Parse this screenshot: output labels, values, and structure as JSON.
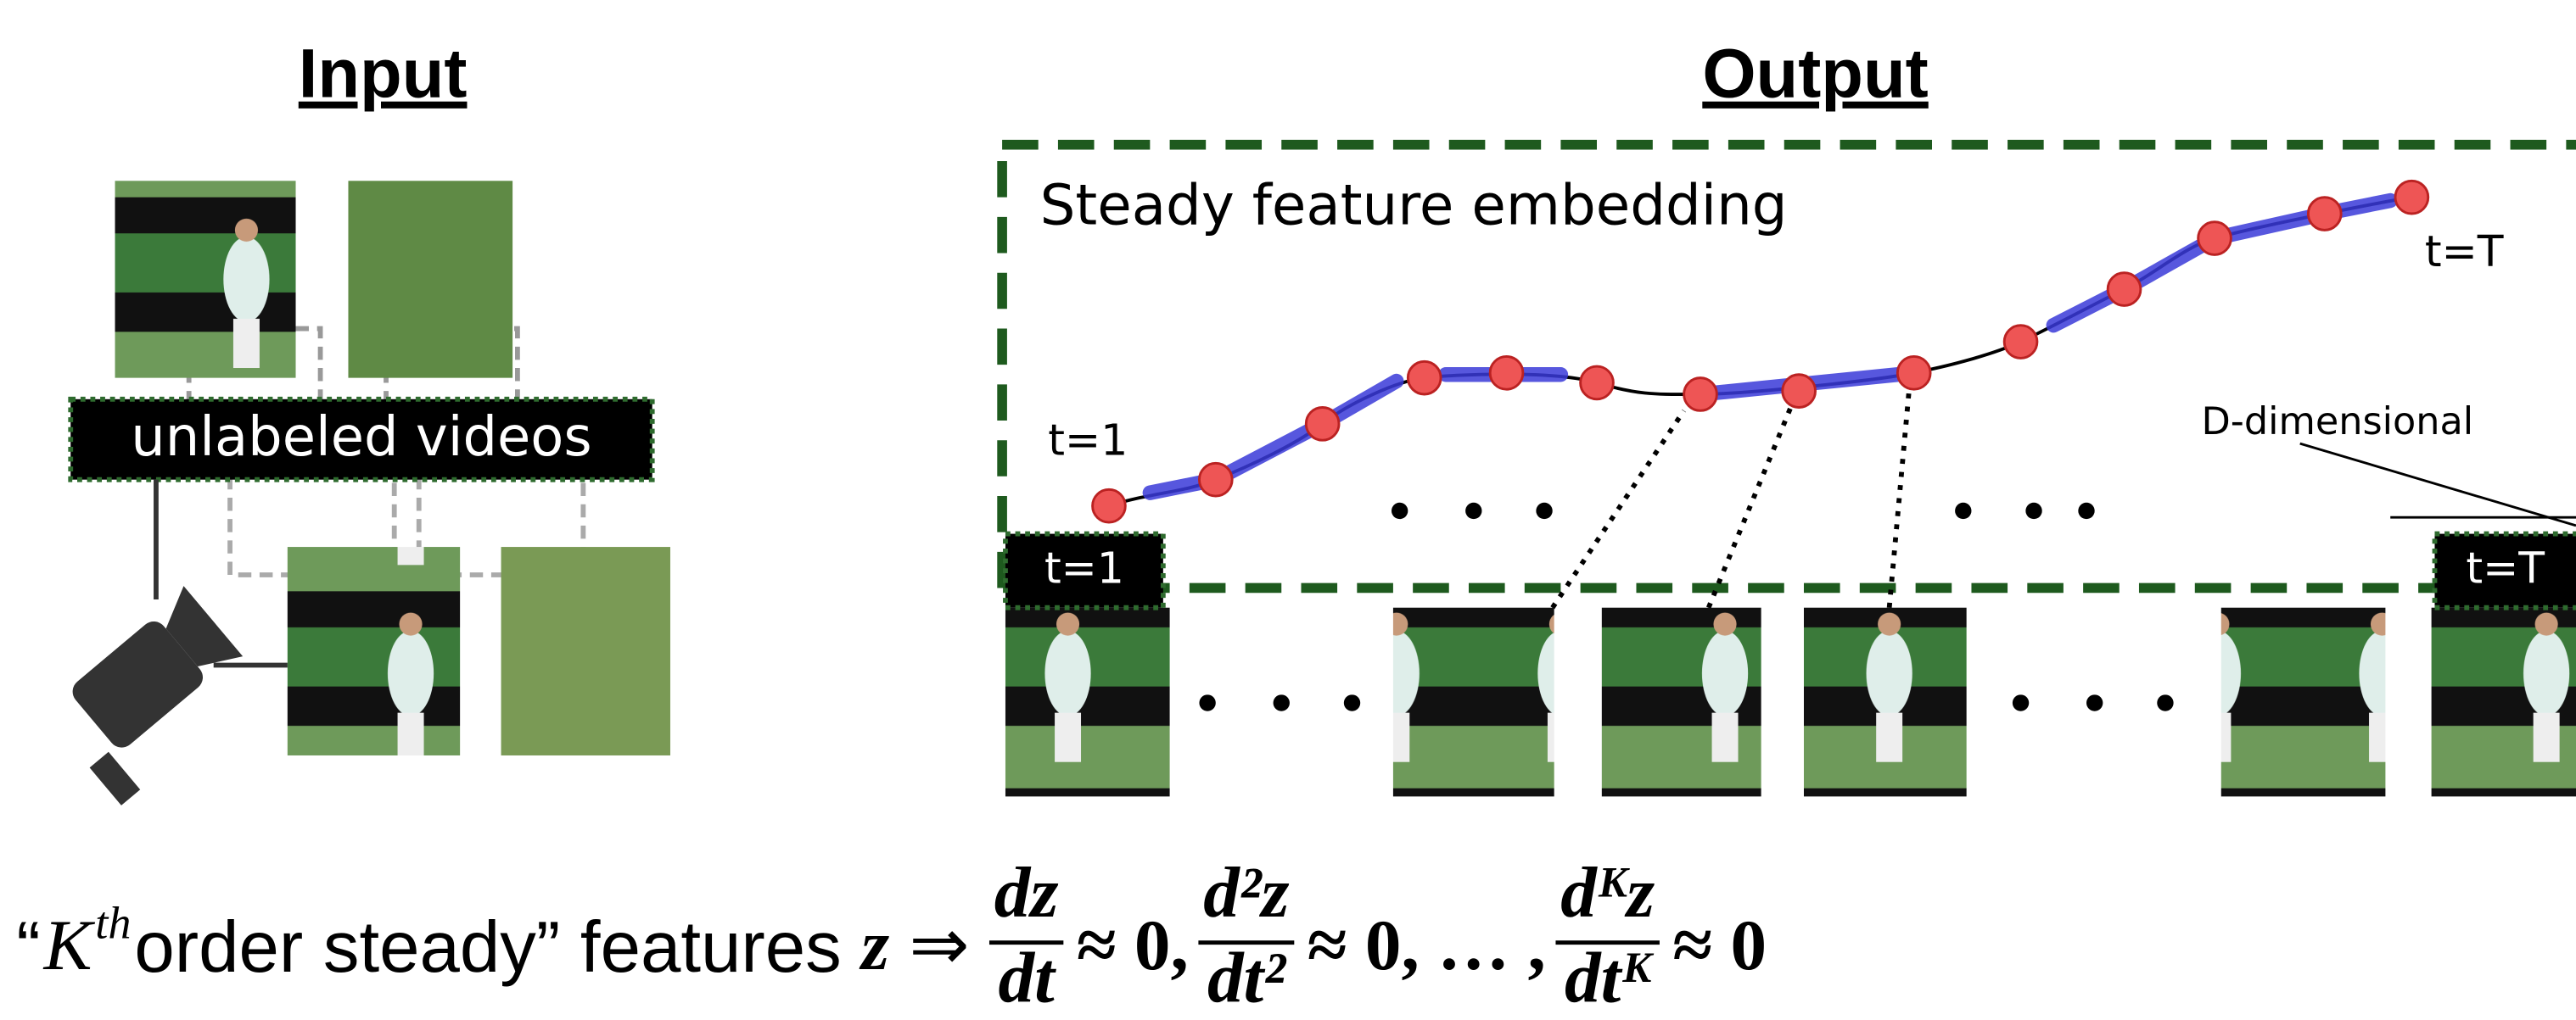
{
  "input_title": "Input",
  "output_title": "Output",
  "input_label": "unlabeled videos",
  "embedding_label": "Steady feature embedding",
  "start_label": "t=1",
  "end_label": "t=T",
  "dimension_label": "D-dimensional",
  "frame_start_label": "t=1",
  "frame_end_label": "t=T",
  "formula": {
    "open": "“",
    "k": "K",
    "sup": "th",
    "text": "order steady” features",
    "z": "z",
    "implies": "⇒",
    "fractions": [
      {
        "num": "dz",
        "den": "dt",
        "after": "≈ 0,"
      },
      {
        "num": "d²z",
        "den": "dt²",
        "after": "≈ 0, … ,"
      },
      {
        "num": "dᴷz",
        "den": "dtᴷ",
        "after": "≈ 0"
      }
    ]
  }
}
